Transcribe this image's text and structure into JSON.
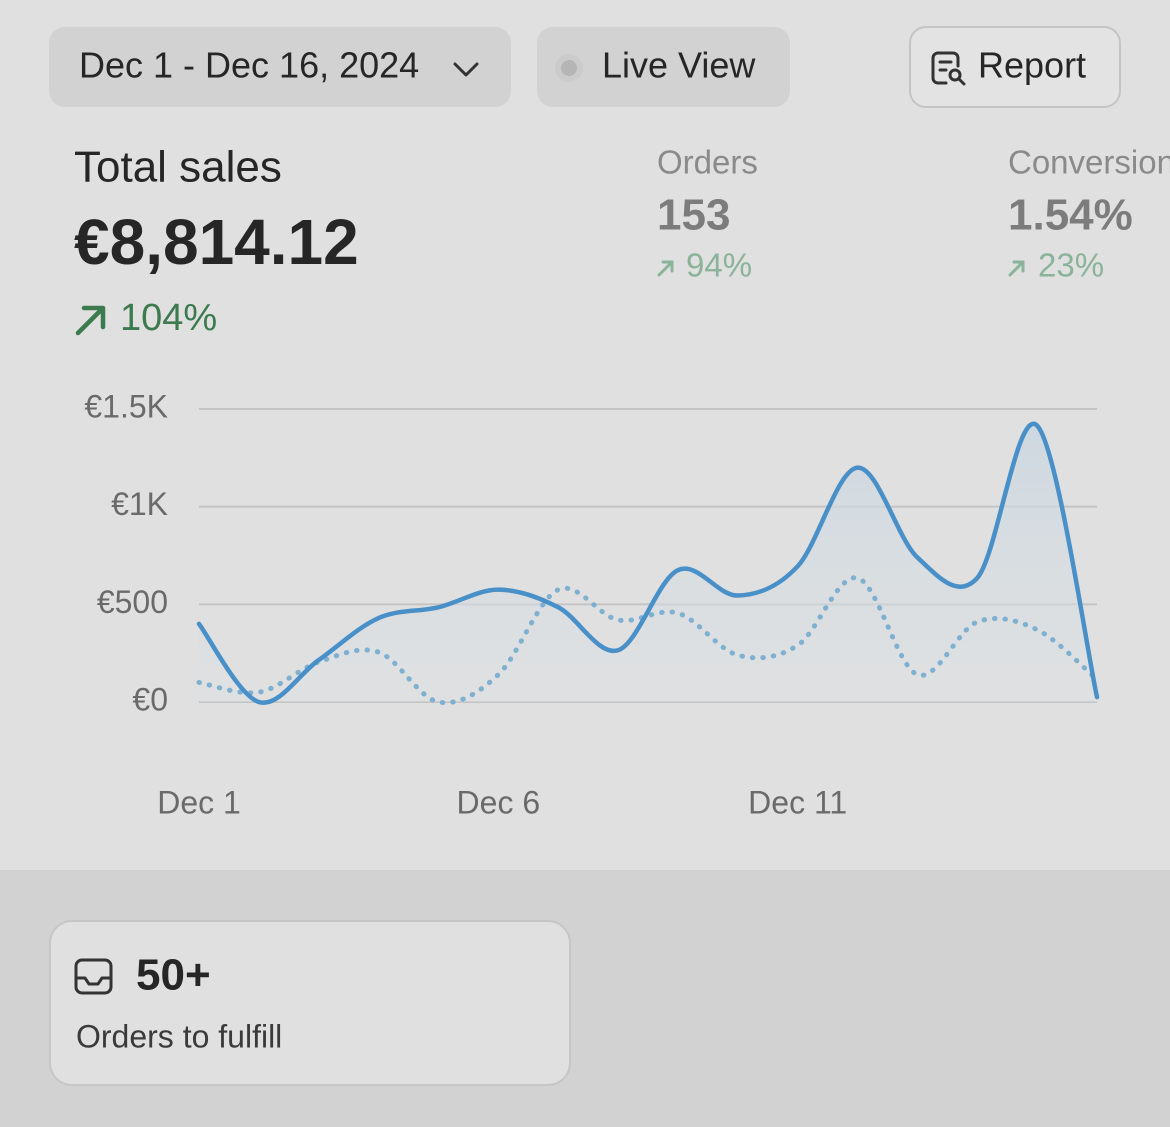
{
  "header": {
    "date_range": "Dec 1 - Dec 16, 2024",
    "live_view": "Live View",
    "report": "Report"
  },
  "metrics": [
    {
      "label": "Total sales",
      "value": "€8,814.12",
      "change": "104%"
    },
    {
      "label": "Orders",
      "value": "153",
      "change": "94%"
    },
    {
      "label": "Conversion rate",
      "value": "1.54%",
      "change": "23%"
    }
  ],
  "chart_data": {
    "type": "line",
    "categories": [
      "Dec 1",
      null,
      null,
      null,
      null,
      "Dec 6",
      null,
      null,
      null,
      null,
      "Dec 11",
      null,
      null,
      null,
      null,
      null
    ],
    "series": [
      {
        "color": "#4a90c8",
        "style": "solid",
        "values": [
          400,
          0,
          215,
          430,
          485,
          575,
          485,
          265,
          675,
          545,
          695,
          1200,
          740,
          635,
          1415,
          25
        ]
      },
      {
        "color": "#7fb0cf",
        "style": "dotted",
        "values": [
          100,
          50,
          205,
          255,
          0,
          140,
          575,
          420,
          455,
          240,
          290,
          635,
          140,
          410,
          370,
          115
        ]
      }
    ],
    "ylim": [
      0,
      1500
    ],
    "yticks": [
      {
        "value": 0,
        "label": "€0"
      },
      {
        "value": 500,
        "label": "€500"
      },
      {
        "value": 1000,
        "label": "€1K"
      },
      {
        "value": 1500,
        "label": "€1.5K"
      }
    ],
    "grid": true
  },
  "card": {
    "value": "50+",
    "label": "Orders to fulfill"
  }
}
